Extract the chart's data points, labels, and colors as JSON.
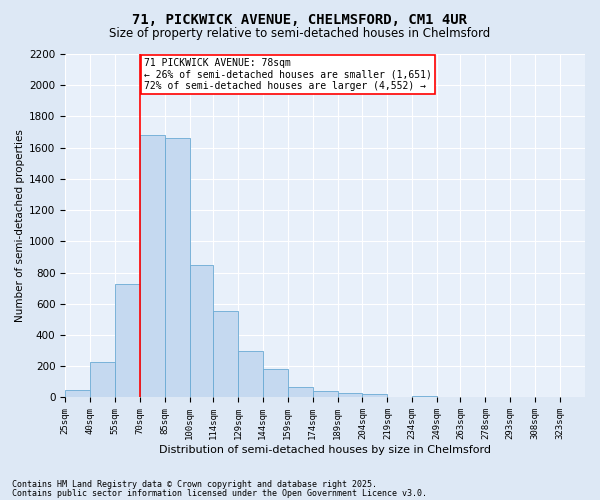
{
  "title1": "71, PICKWICK AVENUE, CHELMSFORD, CM1 4UR",
  "title2": "Size of property relative to semi-detached houses in Chelmsford",
  "xlabel": "Distribution of semi-detached houses by size in Chelmsford",
  "ylabel": "Number of semi-detached properties",
  "bin_labels": [
    "25sqm",
    "40sqm",
    "55sqm",
    "70sqm",
    "85sqm",
    "100sqm",
    "114sqm",
    "129sqm",
    "144sqm",
    "159sqm",
    "174sqm",
    "189sqm",
    "204sqm",
    "219sqm",
    "234sqm",
    "249sqm",
    "263sqm",
    "278sqm",
    "293sqm",
    "308sqm",
    "323sqm"
  ],
  "bar_values": [
    50,
    225,
    730,
    1680,
    1660,
    850,
    555,
    300,
    180,
    65,
    40,
    30,
    20,
    0,
    10,
    0,
    0,
    0,
    0,
    0,
    0
  ],
  "bar_color": "#c5d9f0",
  "bar_edge_color": "#6aaad4",
  "vline_x_bin": 3,
  "vline_color": "red",
  "annotation_title": "71 PICKWICK AVENUE: 78sqm",
  "annotation_line1": "← 26% of semi-detached houses are smaller (1,651)",
  "annotation_line2": "72% of semi-detached houses are larger (4,552) →",
  "ylim": [
    0,
    2200
  ],
  "yticks": [
    0,
    200,
    400,
    600,
    800,
    1000,
    1200,
    1400,
    1600,
    1800,
    2000,
    2200
  ],
  "footnote1": "Contains HM Land Registry data © Crown copyright and database right 2025.",
  "footnote2": "Contains public sector information licensed under the Open Government Licence v3.0.",
  "bg_color": "#dde8f5",
  "plot_bg_color": "#e8f0fa",
  "title1_fontsize": 10,
  "title2_fontsize": 8.5,
  "xlabel_fontsize": 8,
  "ylabel_fontsize": 7.5,
  "xtick_fontsize": 6.5,
  "ytick_fontsize": 7.5,
  "annot_fontsize": 7,
  "footnote_fontsize": 6
}
